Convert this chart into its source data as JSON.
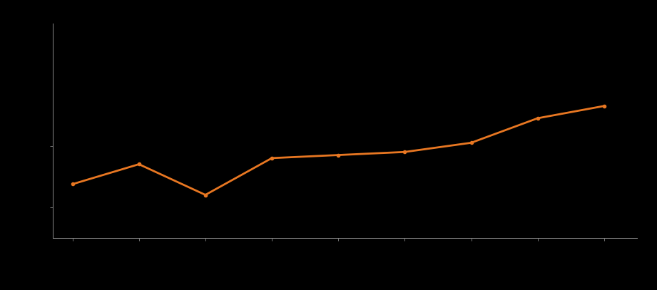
{
  "x": [
    1,
    2,
    3,
    4,
    5,
    6,
    7,
    8,
    9
  ],
  "y": [
    10.5,
    11.8,
    9.8,
    12.2,
    12.4,
    12.6,
    13.2,
    14.8,
    15.6
  ],
  "line_color": "#e87722",
  "marker_color": "#e87722",
  "marker_size": 3,
  "line_width": 2.0,
  "background_color": "#000000",
  "axes_color": "#888888",
  "tick_color": "#888888",
  "spine_color": "#888888",
  "ylim": [
    7,
    21
  ],
  "xlim": [
    0.7,
    9.5
  ],
  "yticks": [
    9,
    13
  ],
  "xticks": [
    1,
    2,
    3,
    4,
    5,
    6,
    7,
    8,
    9
  ],
  "figsize": [
    9.21,
    4.07
  ],
  "dpi": 100
}
